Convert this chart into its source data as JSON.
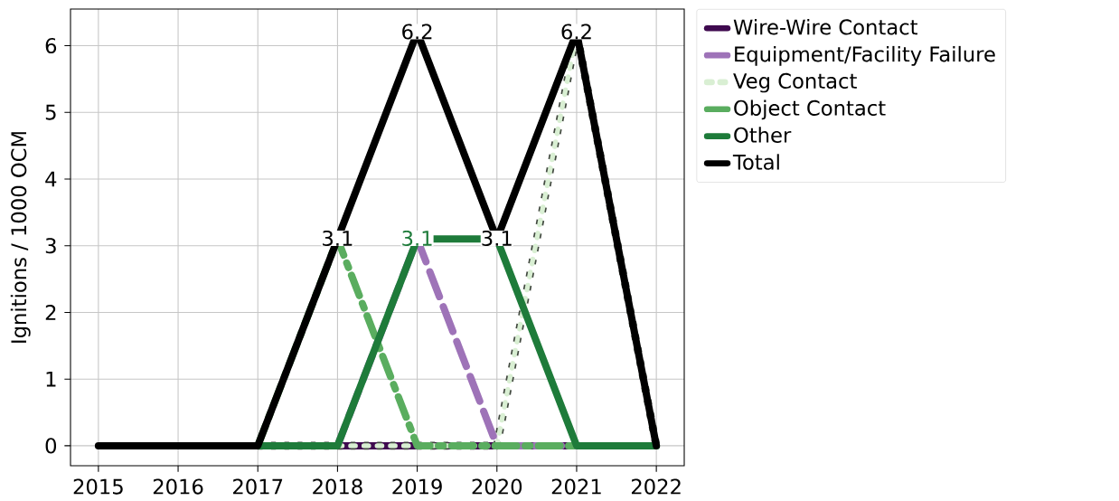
{
  "chart_data": {
    "type": "line",
    "ylabel": "Ignitions / 1000 OCM",
    "x": [
      2015,
      2016,
      2017,
      2018,
      2019,
      2020,
      2021,
      2022
    ],
    "series": [
      {
        "name": "Wire-Wire Contact",
        "color": "#3f0a4f",
        "line_style": "solid",
        "values": [
          null,
          null,
          null,
          0,
          0,
          0,
          0,
          null
        ]
      },
      {
        "name": "Equipment/Facility Failure",
        "color": "#9e73b8",
        "line_style": "dashed",
        "values": [
          null,
          null,
          0,
          0,
          3.1,
          0,
          0,
          0
        ]
      },
      {
        "name": "Veg Contact",
        "color": "#d9efd3",
        "line_style": "dotted",
        "values": [
          null,
          null,
          0,
          0,
          0,
          0,
          6.2,
          0
        ]
      },
      {
        "name": "Object Contact",
        "color": "#5aad5f",
        "line_style": "dashdot",
        "values": [
          null,
          null,
          0,
          3.1,
          0,
          0,
          0,
          0
        ]
      },
      {
        "name": "Other",
        "color": "#1e7b3a",
        "line_style": "solid",
        "values": [
          null,
          null,
          0,
          0,
          3.1,
          3.1,
          0,
          0
        ],
        "value_labels": [
          null,
          null,
          null,
          null,
          "3.1",
          null,
          null,
          null
        ]
      },
      {
        "name": "Total",
        "color": "#000000",
        "line_style": "solid",
        "values": [
          0,
          0,
          0,
          3.1,
          6.2,
          3.1,
          6.2,
          0
        ],
        "value_labels": [
          null,
          null,
          null,
          "3.1",
          "6.2",
          "3.1",
          "6.2",
          null
        ]
      }
    ],
    "xlim": [
      2014.65,
      2022.35
    ],
    "ylim": [
      -0.3,
      6.55
    ],
    "xticks": [
      2015,
      2016,
      2017,
      2018,
      2019,
      2020,
      2021,
      2022
    ],
    "yticks": [
      0,
      1,
      2,
      3,
      4,
      5,
      6
    ],
    "grid": true,
    "legend": "right",
    "marker": "none"
  }
}
